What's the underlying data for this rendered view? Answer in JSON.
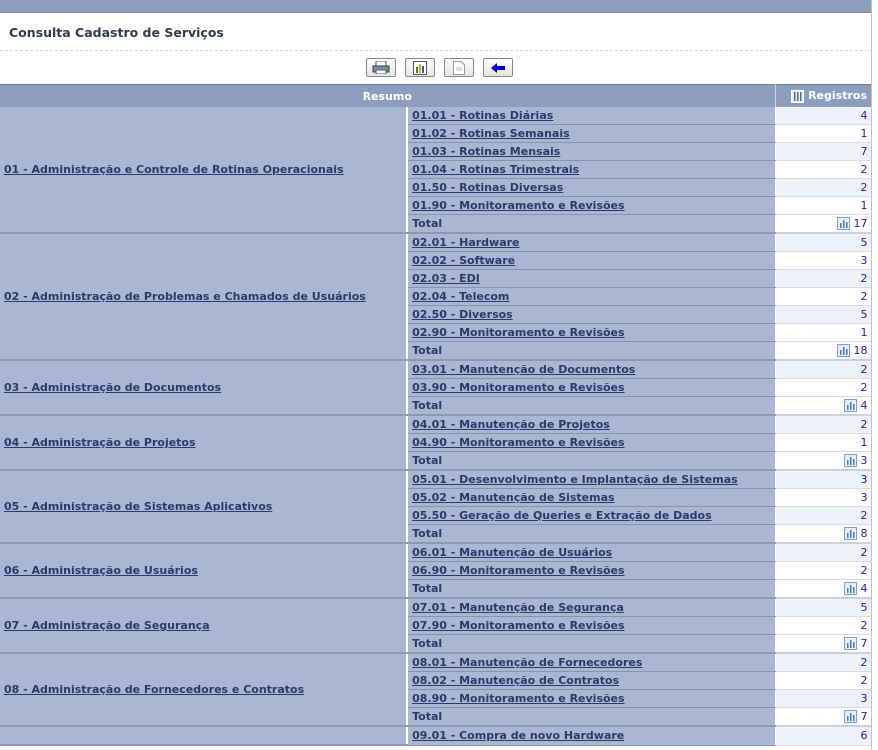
{
  "page_title": "Consulta Cadastro de Serviços",
  "toolbar": [
    {
      "icon": "printer-icon"
    },
    {
      "icon": "chart-icon"
    },
    {
      "icon": "document-icon"
    },
    {
      "icon": "back-arrow-icon"
    }
  ],
  "table": {
    "header_resumo": "Resumo",
    "header_registros": "Registros",
    "total_label": "Total",
    "groups": [
      {
        "label": "01 - Administração e Controle de Rotinas Operacionais",
        "items": [
          [
            "01.01 - Rotinas Diárias",
            "4"
          ],
          [
            "01.02 - Rotinas Semanais",
            "1"
          ],
          [
            "01.03 - Rotinas Mensais",
            "7"
          ],
          [
            "01.04 - Rotinas Trimestrais",
            "2"
          ],
          [
            "01.50 - Rotinas Diversas",
            "2"
          ],
          [
            "01.90 - Monitoramento e Revisões",
            "1"
          ]
        ],
        "total": "17"
      },
      {
        "label": "02 - Administração de Problemas e Chamados de Usuários",
        "items": [
          [
            "02.01 - Hardware",
            "5"
          ],
          [
            "02.02 - Software",
            "3"
          ],
          [
            "02.03 - EDI",
            "2"
          ],
          [
            "02.04 - Telecom",
            "2"
          ],
          [
            "02.50 - Diversos",
            "5"
          ],
          [
            "02.90 - Monitoramento e Revisões",
            "1"
          ]
        ],
        "total": "18"
      },
      {
        "label": "03 - Administração de Documentos",
        "items": [
          [
            "03.01 - Manutenção de Documentos",
            "2"
          ],
          [
            "03.90 - Monitoramento e Revisões",
            "2"
          ]
        ],
        "total": "4"
      },
      {
        "label": "04 - Administração de Projetos",
        "items": [
          [
            "04.01 - Manutenção de Projetos",
            "2"
          ],
          [
            "04.90 - Monitoramento e Revisões",
            "1"
          ]
        ],
        "total": "3"
      },
      {
        "label": "05 - Administração de Sistemas Aplicativos",
        "items": [
          [
            "05.01 - Desenvolvimento e Implantação de Sistemas",
            "3"
          ],
          [
            "05.02 - Manutenção de Sistemas",
            "3"
          ],
          [
            "05.50 - Geração de Queries e Extração de Dados",
            "2"
          ]
        ],
        "total": "8"
      },
      {
        "label": "06 - Administração de Usuários",
        "items": [
          [
            "06.01 - Manutenção de Usuários",
            "2"
          ],
          [
            "06.90 - Monitoramento e Revisões",
            "2"
          ]
        ],
        "total": "4"
      },
      {
        "label": "07 - Administração de Segurança",
        "items": [
          [
            "07.01 - Manutenção de Segurança",
            "5"
          ],
          [
            "07.90 - Monitoramento e Revisões",
            "2"
          ]
        ],
        "total": "7"
      },
      {
        "label": "08 - Administração de Fornecedores e Contratos",
        "items": [
          [
            "08.01 - Manutenção de Fornecedores",
            "2"
          ],
          [
            "08.02 - Manutenção de Contratos",
            "2"
          ],
          [
            "08.90 - Monitoramento e Revisões",
            "3"
          ]
        ],
        "total": "7"
      },
      {
        "label": "",
        "items": [
          [
            "09.01 - Compra de novo Hardware",
            "6"
          ]
        ],
        "total": null
      }
    ]
  }
}
